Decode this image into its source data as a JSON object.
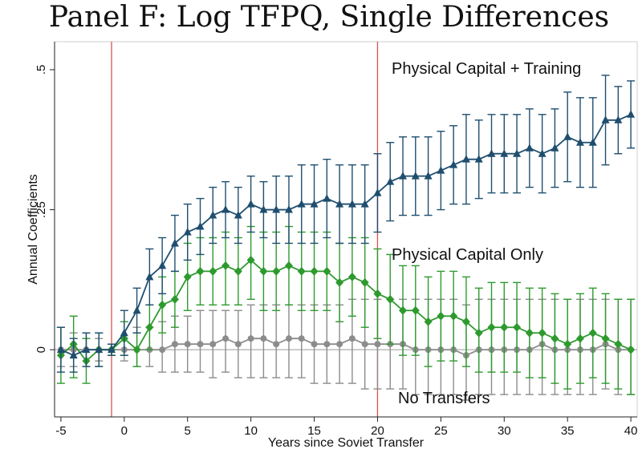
{
  "chart_data": {
    "type": "line",
    "title": "Panel F: Log TFPQ, Single Differences",
    "xlabel": "Years since Soviet Transfer",
    "ylabel": "Annual Coefficients",
    "xlim": [
      -5.5,
      40.5
    ],
    "ylim": [
      -0.12,
      0.55
    ],
    "xticks": [
      -5,
      0,
      5,
      10,
      15,
      20,
      25,
      30,
      35,
      40
    ],
    "xtick_labels": [
      "-5",
      "0",
      "5",
      "10",
      "15",
      "20",
      "25",
      "30",
      "35",
      "40"
    ],
    "yticks": [
      0,
      0.25,
      0.5
    ],
    "ytick_labels": [
      "0",
      ".25",
      ".5"
    ],
    "reference_lines": {
      "vertical": [
        -1,
        20
      ],
      "horizontal": [
        0
      ]
    },
    "grid": false,
    "x": [
      -5,
      -4,
      -3,
      -2,
      -1,
      0,
      1,
      2,
      3,
      4,
      5,
      6,
      7,
      8,
      9,
      10,
      11,
      12,
      13,
      14,
      15,
      16,
      17,
      18,
      19,
      20,
      21,
      22,
      23,
      24,
      25,
      26,
      27,
      28,
      29,
      30,
      31,
      32,
      33,
      34,
      35,
      36,
      37,
      38,
      39,
      40
    ],
    "series": [
      {
        "name": "Physical Capital + Training",
        "color": "#1f4e6e",
        "marker": "triangle",
        "values": [
          0.0,
          -0.01,
          0.0,
          0.0,
          0.0,
          0.03,
          0.07,
          0.13,
          0.15,
          0.19,
          0.21,
          0.22,
          0.24,
          0.25,
          0.24,
          0.26,
          0.25,
          0.25,
          0.25,
          0.26,
          0.26,
          0.27,
          0.26,
          0.26,
          0.26,
          0.28,
          0.3,
          0.31,
          0.31,
          0.31,
          0.32,
          0.33,
          0.34,
          0.34,
          0.35,
          0.35,
          0.35,
          0.36,
          0.35,
          0.36,
          0.38,
          0.37,
          0.37,
          0.41,
          0.41,
          0.42
        ],
        "ci_low": [
          -0.04,
          -0.04,
          -0.03,
          -0.03,
          -0.01,
          -0.01,
          0.03,
          0.08,
          0.1,
          0.14,
          0.16,
          0.17,
          0.19,
          0.2,
          0.19,
          0.21,
          0.2,
          0.19,
          0.19,
          0.19,
          0.19,
          0.2,
          0.19,
          0.19,
          0.19,
          0.21,
          0.23,
          0.24,
          0.24,
          0.24,
          0.25,
          0.26,
          0.26,
          0.27,
          0.28,
          0.28,
          0.28,
          0.29,
          0.28,
          0.29,
          0.3,
          0.29,
          0.29,
          0.33,
          0.35,
          0.36
        ],
        "ci_high": [
          0.04,
          0.02,
          0.03,
          0.03,
          0.01,
          0.07,
          0.11,
          0.18,
          0.2,
          0.24,
          0.26,
          0.27,
          0.29,
          0.3,
          0.29,
          0.31,
          0.3,
          0.31,
          0.31,
          0.33,
          0.33,
          0.34,
          0.33,
          0.33,
          0.33,
          0.35,
          0.37,
          0.38,
          0.38,
          0.38,
          0.39,
          0.4,
          0.42,
          0.41,
          0.42,
          0.42,
          0.42,
          0.43,
          0.42,
          0.43,
          0.46,
          0.45,
          0.45,
          0.49,
          0.47,
          0.48
        ]
      },
      {
        "name": "Physical Capital Only",
        "color": "#2e9a2e",
        "marker": "diamond",
        "values": [
          -0.01,
          0.01,
          -0.02,
          0.0,
          0.0,
          0.02,
          0.0,
          0.04,
          0.08,
          0.09,
          0.13,
          0.14,
          0.14,
          0.15,
          0.14,
          0.16,
          0.14,
          0.14,
          0.15,
          0.14,
          0.14,
          0.14,
          0.12,
          0.13,
          0.12,
          0.1,
          0.09,
          0.07,
          0.07,
          0.05,
          0.06,
          0.06,
          0.05,
          0.03,
          0.04,
          0.04,
          0.04,
          0.03,
          0.03,
          0.02,
          0.01,
          0.02,
          0.03,
          0.02,
          0.01,
          0.0
        ],
        "ci_low": [
          -0.06,
          -0.05,
          -0.06,
          -0.03,
          -0.01,
          -0.01,
          -0.03,
          0.0,
          0.03,
          0.04,
          0.07,
          0.08,
          0.08,
          0.08,
          0.08,
          0.09,
          0.07,
          0.07,
          0.08,
          0.07,
          0.07,
          0.07,
          0.05,
          0.06,
          0.04,
          0.02,
          0.01,
          -0.01,
          -0.01,
          -0.03,
          -0.02,
          -0.02,
          -0.03,
          -0.04,
          -0.04,
          -0.04,
          -0.04,
          -0.05,
          -0.05,
          -0.06,
          -0.07,
          -0.06,
          -0.05,
          -0.06,
          -0.07,
          -0.08
        ],
        "ci_high": [
          0.04,
          0.06,
          0.02,
          0.03,
          0.01,
          0.05,
          0.03,
          0.08,
          0.13,
          0.14,
          0.19,
          0.2,
          0.2,
          0.21,
          0.2,
          0.22,
          0.21,
          0.21,
          0.22,
          0.21,
          0.21,
          0.21,
          0.19,
          0.2,
          0.2,
          0.18,
          0.17,
          0.15,
          0.15,
          0.13,
          0.14,
          0.14,
          0.13,
          0.11,
          0.12,
          0.12,
          0.12,
          0.11,
          0.11,
          0.1,
          0.09,
          0.1,
          0.11,
          0.1,
          0.09,
          0.09
        ]
      },
      {
        "name": "No Transfers",
        "color": "#8c8c8c",
        "marker": "circle",
        "values": [
          0.0,
          0.0,
          0.0,
          0.0,
          0.0,
          0.0,
          0.0,
          0.0,
          0.0,
          0.01,
          0.01,
          0.01,
          0.01,
          0.02,
          0.01,
          0.02,
          0.02,
          0.01,
          0.02,
          0.02,
          0.01,
          0.01,
          0.01,
          0.02,
          0.01,
          0.01,
          0.01,
          0.01,
          0.0,
          0.0,
          0.0,
          0.0,
          -0.01,
          0.0,
          0.0,
          0.0,
          0.0,
          0.0,
          0.01,
          0.0,
          0.0,
          0.0,
          0.0,
          0.01,
          0.0,
          0.0
        ],
        "ci_low": [
          -0.03,
          -0.03,
          -0.03,
          -0.02,
          -0.01,
          -0.02,
          -0.03,
          -0.03,
          -0.04,
          -0.04,
          -0.04,
          -0.04,
          -0.05,
          -0.04,
          -0.05,
          -0.05,
          -0.05,
          -0.05,
          -0.05,
          -0.05,
          -0.06,
          -0.06,
          -0.06,
          -0.06,
          -0.07,
          -0.07,
          -0.07,
          -0.07,
          -0.08,
          -0.08,
          -0.08,
          -0.08,
          -0.09,
          -0.08,
          -0.08,
          -0.08,
          -0.08,
          -0.08,
          -0.08,
          -0.08,
          -0.08,
          -0.08,
          -0.08,
          -0.07,
          -0.08,
          -0.08
        ],
        "ci_high": [
          0.04,
          0.03,
          0.03,
          0.02,
          0.01,
          0.02,
          0.04,
          0.04,
          0.05,
          0.06,
          0.06,
          0.07,
          0.07,
          0.07,
          0.07,
          0.08,
          0.08,
          0.08,
          0.08,
          0.08,
          0.08,
          0.08,
          0.08,
          0.09,
          0.09,
          0.09,
          0.09,
          0.09,
          0.09,
          0.09,
          0.09,
          0.09,
          0.08,
          0.09,
          0.09,
          0.09,
          0.09,
          0.09,
          0.09,
          0.09,
          0.09,
          0.09,
          0.09,
          0.09,
          0.09,
          0.09
        ]
      }
    ],
    "annotations": [
      "Physical Capital + Training",
      "Physical Capital Only",
      "No Transfers"
    ]
  }
}
